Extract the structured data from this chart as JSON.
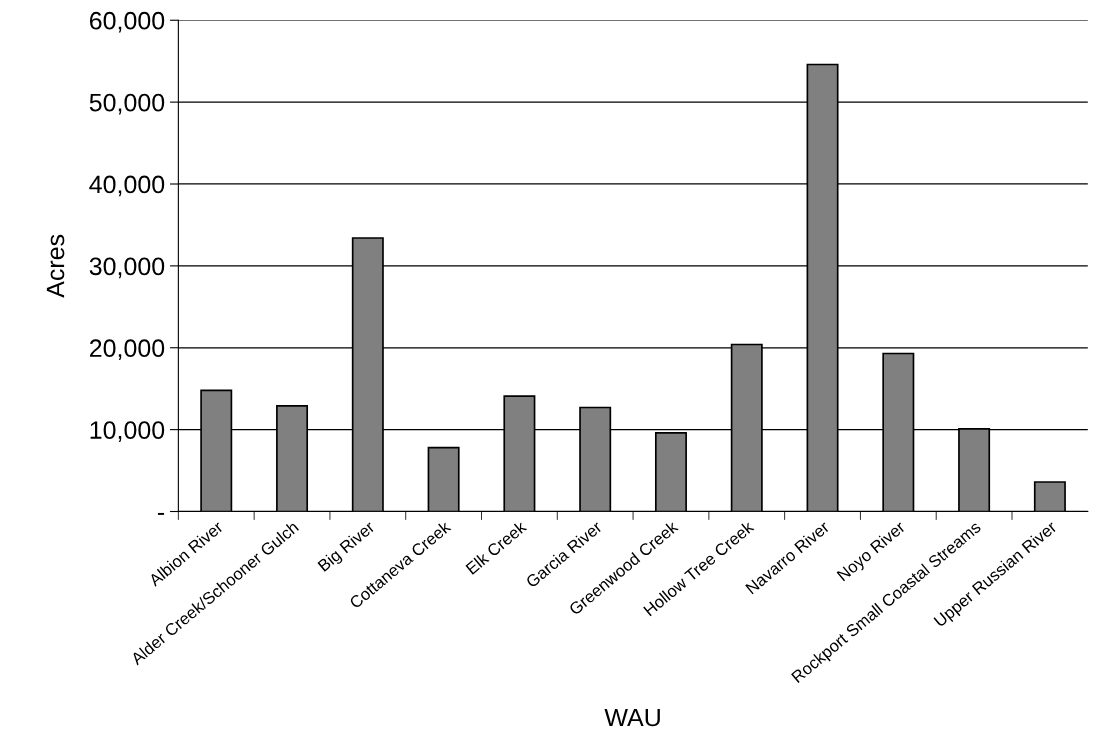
{
  "chart_data": {
    "type": "bar",
    "xlabel": "WAU",
    "ylabel": "Acres",
    "categories": [
      "Albion River",
      "Alder Creek/Schooner Gulch",
      "Big River",
      "Cottaneva Creek",
      "Elk Creek",
      "Garcia River",
      "Greenwood Creek",
      "Hollow Tree Creek",
      "Navarro River",
      "Noyo River",
      "Rockport Small Coastal Streams",
      "Upper Russian River"
    ],
    "values": [
      14800,
      12900,
      33400,
      7800,
      14100,
      12700,
      9600,
      20400,
      54600,
      19300,
      10100,
      3600
    ],
    "color": "#808080",
    "ylim": [
      0,
      60000
    ],
    "yticks": [
      {
        "value": 0,
        "label": "-"
      },
      {
        "value": 10000,
        "label": "10,000"
      },
      {
        "value": 20000,
        "label": "20,000"
      },
      {
        "value": 30000,
        "label": "30,000"
      },
      {
        "value": 40000,
        "label": "40,000"
      },
      {
        "value": 50000,
        "label": "50,000"
      },
      {
        "value": 60000,
        "label": "60,000"
      }
    ],
    "grid": "y"
  }
}
